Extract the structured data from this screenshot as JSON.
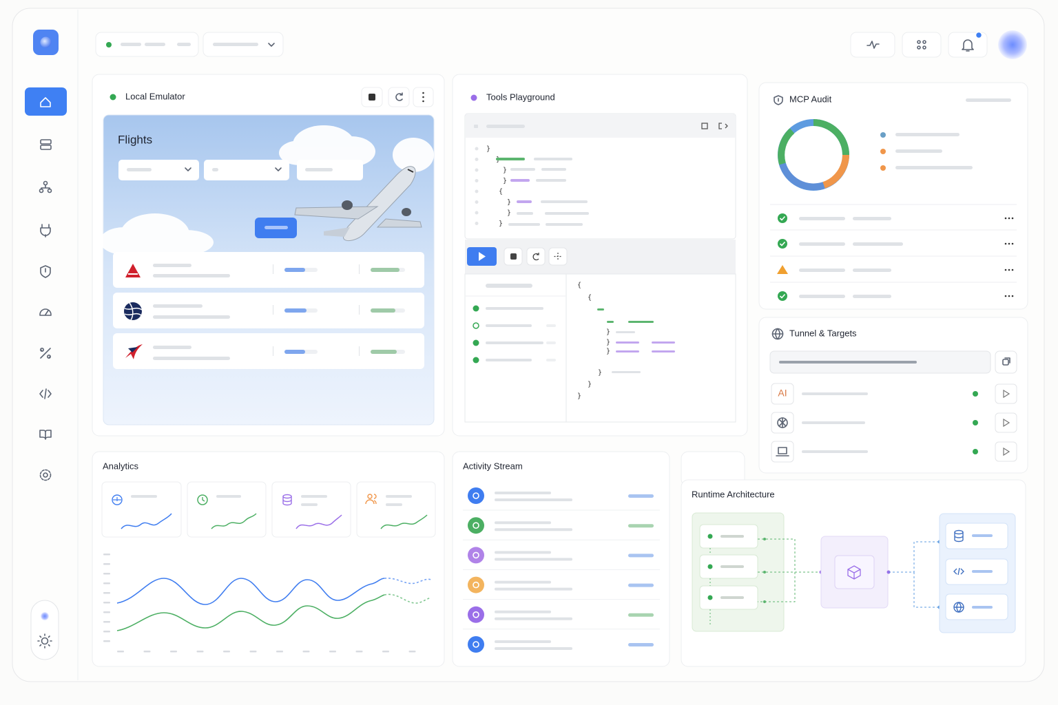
{
  "emulator": {
    "title": "Local Emulator",
    "app_title": "Flights"
  },
  "playground": {
    "title": "Tools Playground",
    "code": [
      "}",
      "}",
      "}",
      "}",
      "{",
      "}",
      "}",
      "}"
    ],
    "response": [
      "{",
      "{",
      "}",
      "}",
      "}",
      "}",
      "}",
      "}"
    ]
  },
  "audit": {
    "title": "MCP Audit"
  },
  "tunnel": {
    "title": "Tunnel & Targets",
    "ai_label": "AI"
  },
  "analytics": {
    "title": "Analytics"
  },
  "activity": {
    "title": "Activity Stream"
  },
  "architecture": {
    "title": "Runtime Architecture"
  }
}
